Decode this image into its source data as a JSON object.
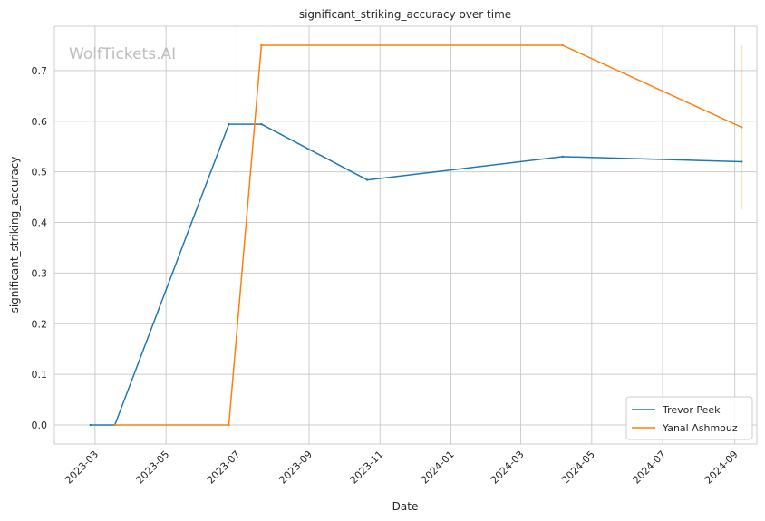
{
  "chart_data": {
    "type": "line",
    "title": "significant_striking_accuracy over time",
    "xlabel": "Date",
    "ylabel": "significant_striking_accuracy",
    "watermark": "WolfTickets.AI",
    "xlim": [
      "2023-01-25",
      "2024-09-20"
    ],
    "ylim": [
      -0.0375,
      0.7875
    ],
    "x_ticks": [
      "2023-03",
      "2023-05",
      "2023-07",
      "2023-09",
      "2023-11",
      "2024-01",
      "2024-03",
      "2024-05",
      "2024-07",
      "2024-09"
    ],
    "y_ticks": [
      "0.0",
      "0.1",
      "0.2",
      "0.3",
      "0.4",
      "0.5",
      "0.6",
      "0.7"
    ],
    "grid": true,
    "legend_position": "bottom-right",
    "series": [
      {
        "name": "Trevor Peek",
        "color": "#1f77b4",
        "points": [
          {
            "x": "2023-02-25",
            "y": 0.0
          },
          {
            "x": "2023-03-18",
            "y": 0.0
          },
          {
            "x": "2023-06-24",
            "y": 0.594
          },
          {
            "x": "2023-07-22",
            "y": 0.594
          },
          {
            "x": "2023-10-21",
            "y": 0.484
          },
          {
            "x": "2024-04-06",
            "y": 0.53
          },
          {
            "x": "2024-09-07",
            "y": 0.52
          }
        ]
      },
      {
        "name": "Yanal Ashmouz",
        "color": "#ff7f0e",
        "points": [
          {
            "x": "2023-03-18",
            "y": 0.0
          },
          {
            "x": "2023-06-24",
            "y": 0.0
          },
          {
            "x": "2023-07-22",
            "y": 0.75
          },
          {
            "x": "2024-04-06",
            "y": 0.75
          },
          {
            "x": "2024-09-07",
            "y": 0.588
          }
        ],
        "band": {
          "x": "2024-09-07",
          "low": 0.426,
          "high": 0.75
        }
      }
    ]
  }
}
